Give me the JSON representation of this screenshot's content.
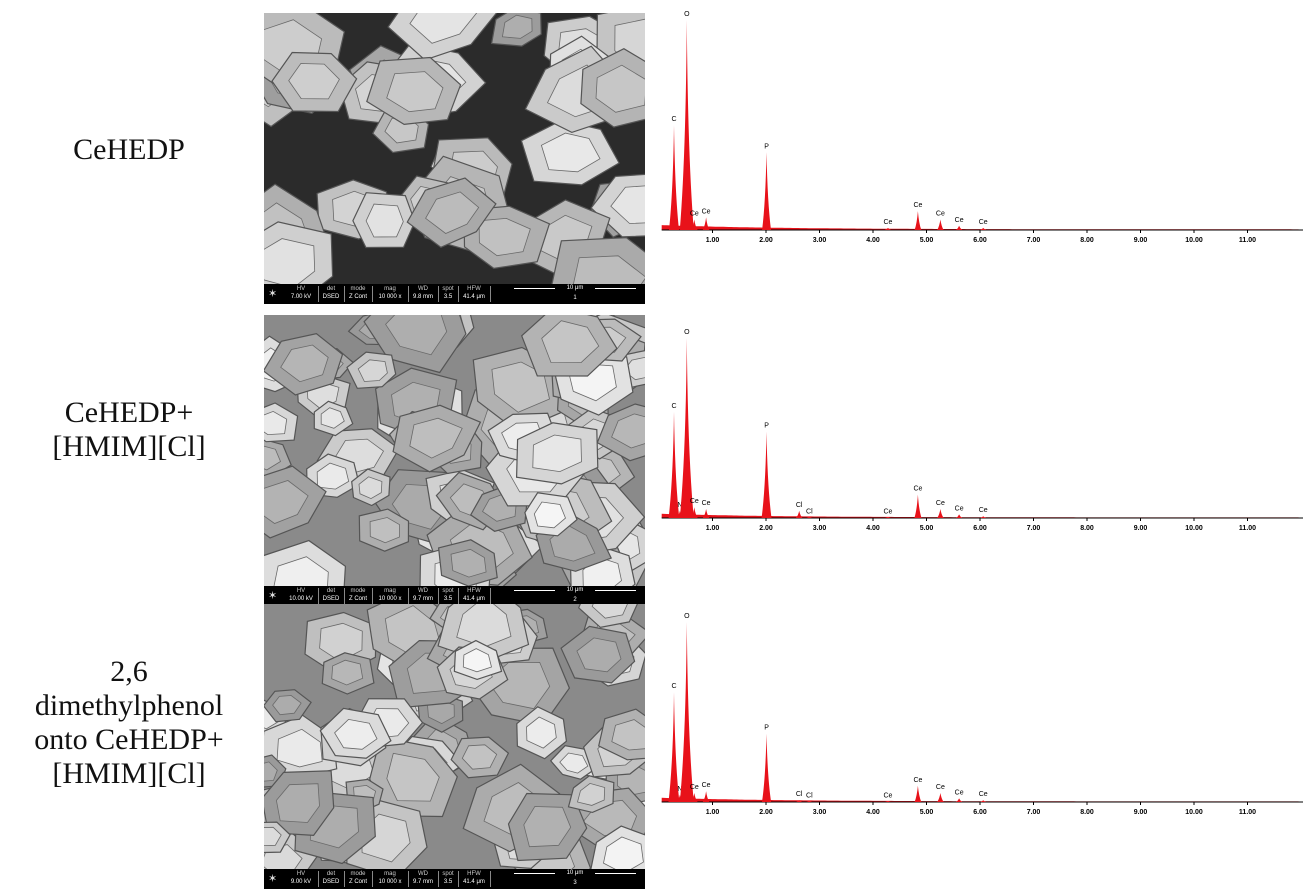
{
  "panels": [
    {
      "label_lines": [
        "CeHEDP"
      ],
      "sem": {
        "hv_label": "HV",
        "hv": "7.00 kV",
        "det_label": "det",
        "det": "DSED",
        "mode_label": "mode",
        "mode": "Z Cont",
        "mag_label": "mag",
        "mag": "10 000 x",
        "wd_label": "WD",
        "wd": "9.8 mm",
        "spot_label": "spot",
        "spot": "3.5",
        "hfw_label": "HFW",
        "hfw": "41.4 μm",
        "scale": "10 μm",
        "image_no": "1"
      }
    },
    {
      "label_lines": [
        "CeHEDP+",
        "[HMIM][Cl]"
      ],
      "sem": {
        "hv_label": "HV",
        "hv": "10.00 kV",
        "det_label": "det",
        "det": "DSED",
        "mode_label": "mode",
        "mode": "Z Cont",
        "mag_label": "mag",
        "mag": "10 000 x",
        "wd_label": "WD",
        "wd": "9.7 mm",
        "spot_label": "spot",
        "spot": "3.5",
        "hfw_label": "HFW",
        "hfw": "41.4 μm",
        "scale": "10 μm",
        "image_no": "2"
      }
    },
    {
      "label_lines": [
        "2,6",
        "dimethylphenol",
        "onto CeHEDP+",
        "[HMIM][Cl]"
      ],
      "sem": {
        "hv_label": "HV",
        "hv": "9.00 kV",
        "det_label": "det",
        "det": "DSED",
        "mode_label": "mode",
        "mode": "Z Cont",
        "mag_label": "mag",
        "mag": "10 000 x",
        "wd_label": "WD",
        "wd": "9.7 mm",
        "spot_label": "spot",
        "spot": "3.5",
        "hfw_label": "HFW",
        "hfw": "41.4 μm",
        "scale": "10 μm",
        "image_no": "3"
      }
    }
  ],
  "colors": {
    "spectrum": "#e8121a",
    "sem_bg": "#3a3a3a"
  },
  "chart_data": [
    {
      "type": "area",
      "xlim": [
        0.0,
        12.0
      ],
      "ticks": [
        "1.00",
        "2.00",
        "3.00",
        "4.00",
        "5.00",
        "6.00",
        "7.00",
        "8.00",
        "9.00",
        "10.00",
        "11.00"
      ],
      "peaks": [
        {
          "label": "C",
          "x": 0.28,
          "y": 0.5
        },
        {
          "label": "O",
          "x": 0.52,
          "y": 1.0
        },
        {
          "label": "Ce",
          "x": 0.66,
          "y": 0.05
        },
        {
          "label": "Ce",
          "x": 0.88,
          "y": 0.06
        },
        {
          "label": "P",
          "x": 2.01,
          "y": 0.37
        },
        {
          "label": "Ce",
          "x": 4.28,
          "y": 0.01
        },
        {
          "label": "Ce",
          "x": 4.84,
          "y": 0.09
        },
        {
          "label": "Ce",
          "x": 5.26,
          "y": 0.05
        },
        {
          "label": "Ce",
          "x": 5.61,
          "y": 0.02
        },
        {
          "label": "Ce",
          "x": 6.06,
          "y": 0.01
        }
      ]
    },
    {
      "type": "area",
      "xlim": [
        0.0,
        12.0
      ],
      "ticks": [
        "1.00",
        "2.00",
        "3.00",
        "4.00",
        "5.00",
        "6.00",
        "7.00",
        "8.00",
        "9.00",
        "10.00",
        "11.00"
      ],
      "peaks": [
        {
          "label": "C",
          "x": 0.28,
          "y": 0.59
        },
        {
          "label": "N",
          "x": 0.39,
          "y": 0.04
        },
        {
          "label": "O",
          "x": 0.52,
          "y": 1.0
        },
        {
          "label": "Ce",
          "x": 0.66,
          "y": 0.06
        },
        {
          "label": "Ce",
          "x": 0.88,
          "y": 0.05
        },
        {
          "label": "P",
          "x": 2.01,
          "y": 0.48
        },
        {
          "label": "Cl",
          "x": 2.62,
          "y": 0.04
        },
        {
          "label": "Cl",
          "x": 2.81,
          "y": 0.0
        },
        {
          "label": "Ce",
          "x": 4.28,
          "y": 0.0
        },
        {
          "label": "Ce",
          "x": 4.84,
          "y": 0.13
        },
        {
          "label": "Ce",
          "x": 5.26,
          "y": 0.05
        },
        {
          "label": "Ce",
          "x": 5.61,
          "y": 0.02
        },
        {
          "label": "Ce",
          "x": 6.06,
          "y": 0.01
        }
      ]
    },
    {
      "type": "area",
      "xlim": [
        0.0,
        12.0
      ],
      "ticks": [
        "1.00",
        "2.00",
        "3.00",
        "4.00",
        "5.00",
        "6.00",
        "7.00",
        "8.00",
        "9.00",
        "10.00",
        "11.00"
      ],
      "peaks": [
        {
          "label": "C",
          "x": 0.28,
          "y": 0.61
        },
        {
          "label": "N",
          "x": 0.39,
          "y": 0.04
        },
        {
          "label": "O",
          "x": 0.52,
          "y": 1.0
        },
        {
          "label": "Ce",
          "x": 0.66,
          "y": 0.05
        },
        {
          "label": "Ce",
          "x": 0.88,
          "y": 0.06
        },
        {
          "label": "P",
          "x": 2.01,
          "y": 0.38
        },
        {
          "label": "Cl",
          "x": 2.62,
          "y": 0.01
        },
        {
          "label": "Cl",
          "x": 2.81,
          "y": 0.0
        },
        {
          "label": "Ce",
          "x": 4.28,
          "y": 0.0
        },
        {
          "label": "Ce",
          "x": 4.84,
          "y": 0.09
        },
        {
          "label": "Ce",
          "x": 5.26,
          "y": 0.05
        },
        {
          "label": "Ce",
          "x": 5.61,
          "y": 0.02
        },
        {
          "label": "Ce",
          "x": 6.06,
          "y": 0.01
        }
      ]
    }
  ]
}
